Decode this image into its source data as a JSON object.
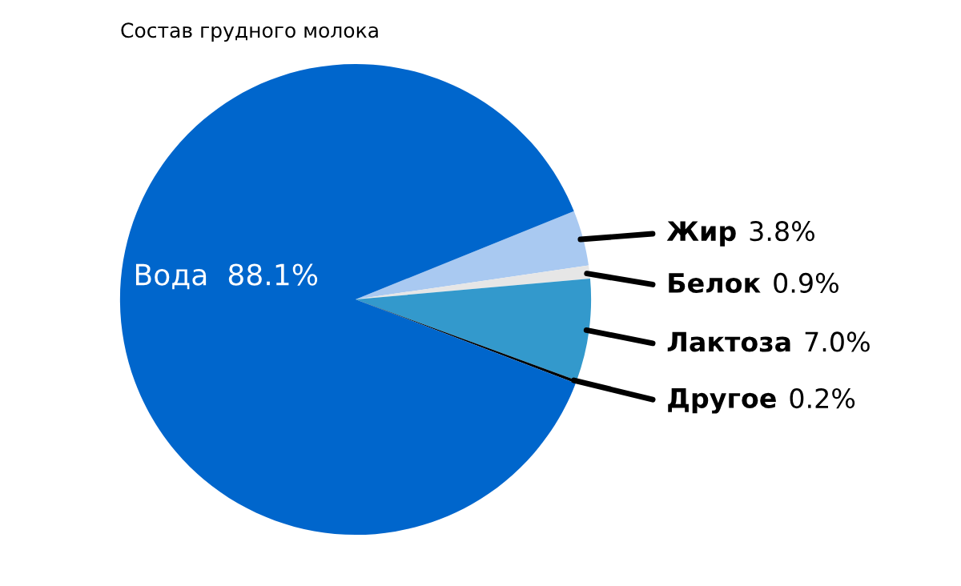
{
  "chart_data": {
    "type": "pie",
    "title": "Состав грудного молока",
    "categories": [
      "Жир",
      "Белок",
      "Лактоза",
      "Другое",
      "Вода"
    ],
    "values": [
      3.8,
      0.9,
      7.0,
      0.2,
      88.1
    ],
    "colors": [
      "#a9c9f1",
      "#e6e6e6",
      "#3399cc",
      "#000000",
      "#0066cc"
    ],
    "value_labels": [
      "3.8%",
      "0.9%",
      "7.0%",
      "0.2%",
      "88.1%"
    ],
    "legend": false
  }
}
